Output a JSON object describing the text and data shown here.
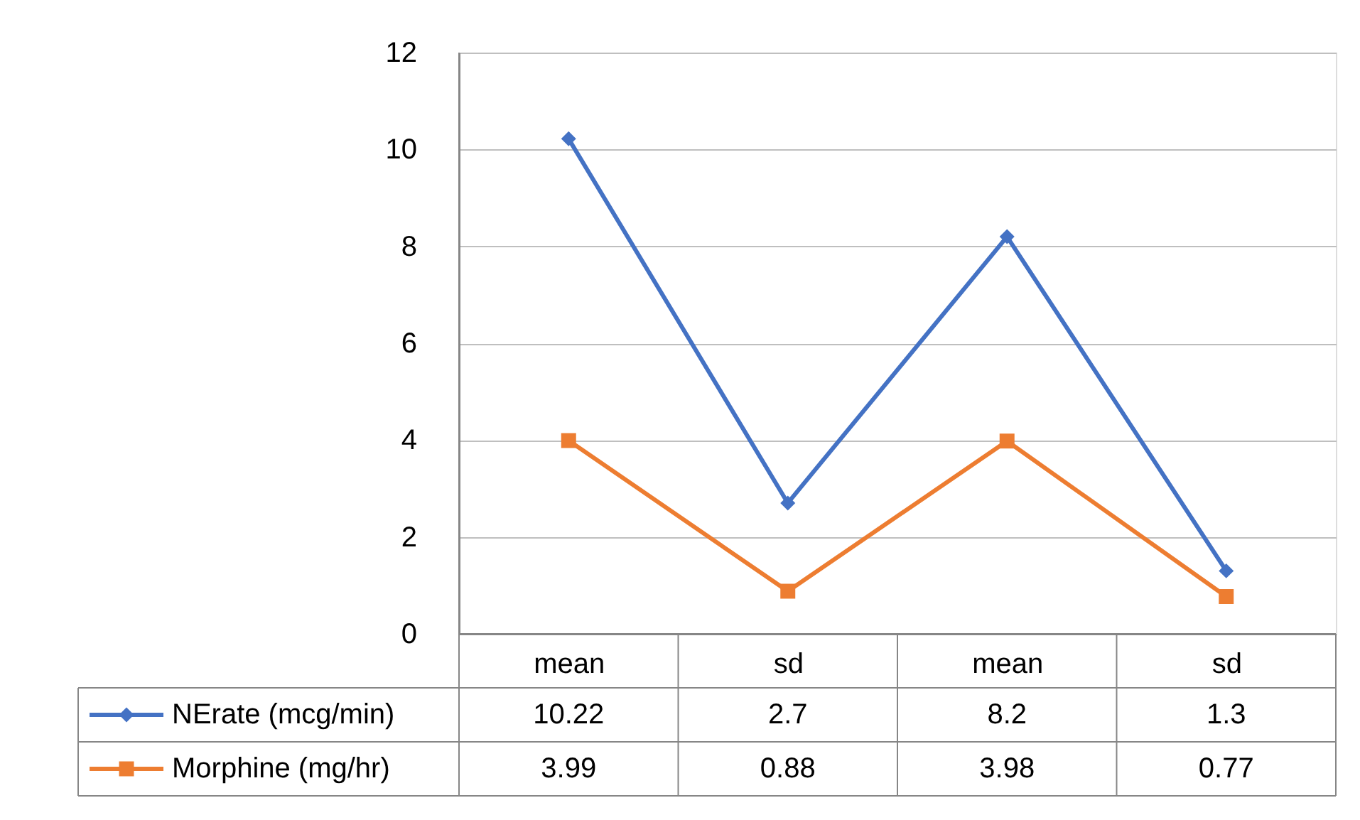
{
  "chart_data": {
    "type": "line",
    "categories": [
      "mean",
      "sd",
      "mean",
      "sd"
    ],
    "series": [
      {
        "name": "NErate (mcg/min)",
        "color": "#4472c4",
        "marker": "diamond",
        "values": [
          10.22,
          2.7,
          8.2,
          1.3
        ]
      },
      {
        "name": "Morphine (mg/hr)",
        "color": "#ed7d31",
        "marker": "square",
        "values": [
          3.99,
          0.88,
          3.98,
          0.77
        ]
      }
    ],
    "ylim": [
      0,
      12
    ],
    "yticks": [
      0,
      2,
      4,
      6,
      8,
      10,
      12
    ],
    "grid": "y",
    "legend": "bottom",
    "data_labels": true,
    "line_style": "solid"
  }
}
